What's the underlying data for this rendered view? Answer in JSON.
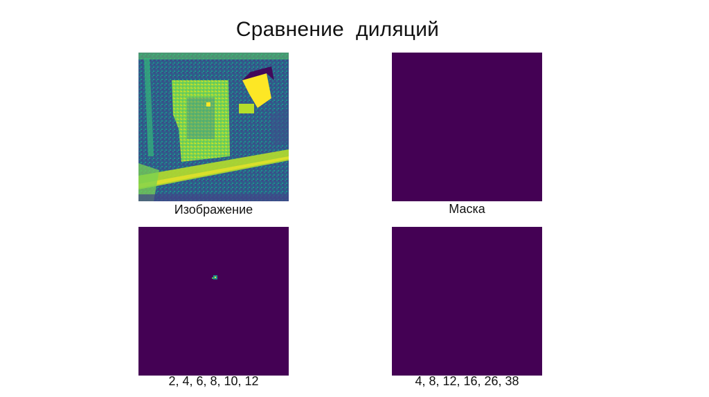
{
  "slide": {
    "title": "Сравнение  диляций"
  },
  "panels": [
    {
      "key": "image",
      "caption": "Изображение",
      "colormap": "viridis",
      "content": "aerial-image"
    },
    {
      "key": "mask",
      "caption": "Маска",
      "colormap": "viridis",
      "content": "empty"
    },
    {
      "key": "dilation-a",
      "caption": "2, 4, 6, 8, 10, 12",
      "colormap": "viridis",
      "content": "small-blob"
    },
    {
      "key": "dilation-b",
      "caption": "4, 8, 12, 16, 26, 38",
      "colormap": "viridis",
      "content": "empty"
    }
  ],
  "colors": {
    "viridis_dark": "#440154",
    "viridis_blue": "#31688e",
    "viridis_teal": "#21918c",
    "viridis_green": "#5ec962",
    "viridis_yellow": "#fde725"
  }
}
